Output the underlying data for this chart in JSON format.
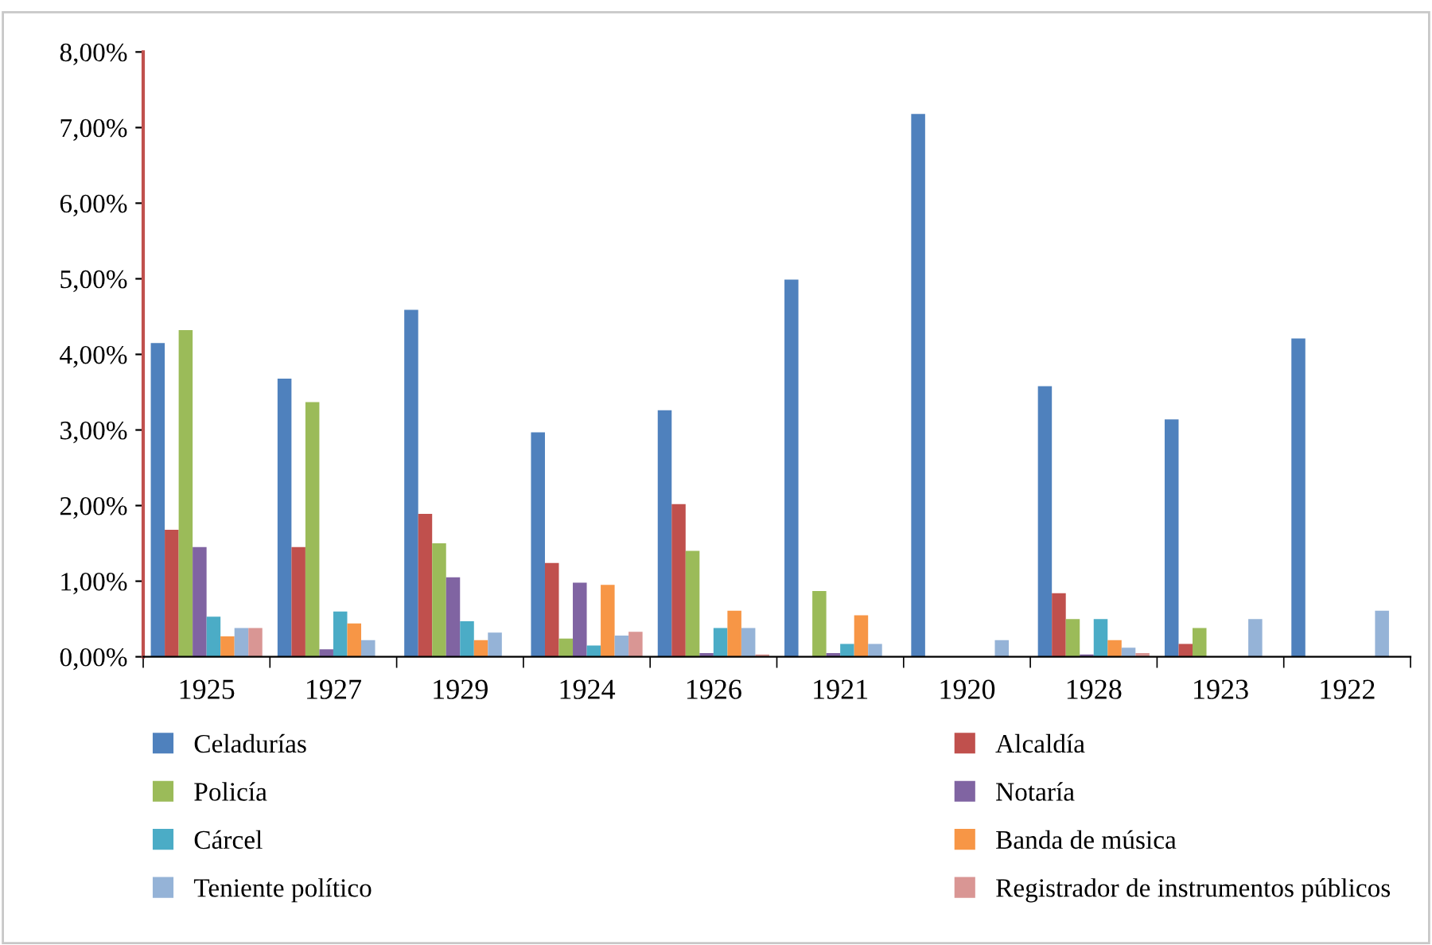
{
  "chart_data": {
    "type": "bar",
    "categories": [
      "1925",
      "1927",
      "1929",
      "1924",
      "1926",
      "1921",
      "1920",
      "1928",
      "1923",
      "1922"
    ],
    "series": [
      {
        "name": "Celadurías",
        "color": "#4f81bd",
        "values": [
          4.15,
          3.68,
          4.59,
          2.97,
          3.26,
          4.99,
          7.18,
          3.58,
          3.14,
          4.21
        ]
      },
      {
        "name": "Alcaldía",
        "color": "#c0504d",
        "values": [
          1.68,
          1.45,
          1.89,
          1.24,
          2.02,
          0,
          0,
          0.84,
          0.17,
          0
        ]
      },
      {
        "name": "Policía",
        "color": "#9bbb59",
        "values": [
          4.32,
          3.37,
          1.5,
          0.24,
          1.4,
          0.87,
          0,
          0.5,
          0.38,
          0
        ]
      },
      {
        "name": "Notaría",
        "color": "#8064a2",
        "values": [
          1.45,
          0.1,
          1.05,
          0.98,
          0.05,
          0.05,
          0,
          0.03,
          0,
          0
        ]
      },
      {
        "name": "Cárcel",
        "color": "#4bacc6",
        "values": [
          0.53,
          0.6,
          0.47,
          0.15,
          0.38,
          0.17,
          0,
          0.5,
          0,
          0
        ]
      },
      {
        "name": "Banda de música",
        "color": "#f79646",
        "values": [
          0.27,
          0.44,
          0.22,
          0.95,
          0.61,
          0.55,
          0,
          0.22,
          0,
          0
        ]
      },
      {
        "name": "Teniente político",
        "color": "#95b3d7",
        "values": [
          0.38,
          0.22,
          0.32,
          0.28,
          0.38,
          0.17,
          0.22,
          0.12,
          0.5,
          0.61
        ]
      },
      {
        "name": "Registrador de instrumentos públicos",
        "color": "#d99694",
        "values": [
          0.38,
          0,
          0,
          0.33,
          0.03,
          0,
          0,
          0.05,
          0,
          0
        ]
      }
    ],
    "ylim": [
      0,
      8
    ],
    "yticks": [
      {
        "value": 0,
        "label": "0,00%"
      },
      {
        "value": 1,
        "label": "1,00%"
      },
      {
        "value": 2,
        "label": "2,00%"
      },
      {
        "value": 3,
        "label": "3,00%"
      },
      {
        "value": 4,
        "label": "4,00%"
      },
      {
        "value": 5,
        "label": "5,00%"
      },
      {
        "value": 6,
        "label": "6,00%"
      },
      {
        "value": 7,
        "label": "7,00%"
      },
      {
        "value": 8,
        "label": "8,00%"
      }
    ],
    "grid": false,
    "legend": "bottom"
  }
}
